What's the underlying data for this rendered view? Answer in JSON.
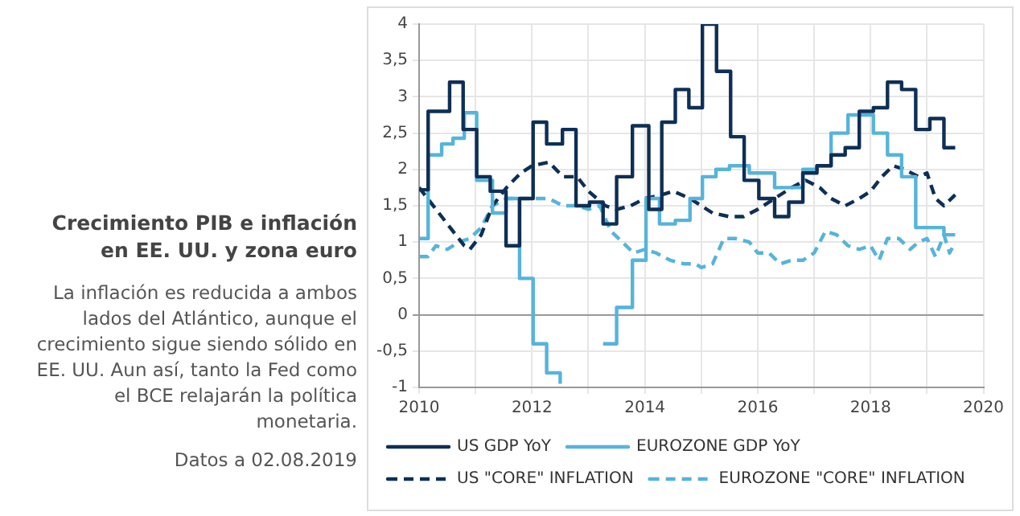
{
  "chart_data": {
    "type": "line",
    "title": "Crecimiento PIB e inflación en EE. UU. y zona euro",
    "subtitle": "La inflación es reducida a ambos lados del Atlántico, aunque el crecimiento sigue siendo sólido en EE. UU. Aun así, tanto la Fed como el BCE relajarán la política monetaria.",
    "annotations": [
      "Datos a 02.08.2019"
    ],
    "xlim": [
      2010,
      2020
    ],
    "xticks": [
      2010,
      {
        "value": 2011,
        "label": null
      },
      2012,
      {
        "value": 2013,
        "label": null
      },
      2014,
      {
        "value": 2015,
        "label": null
      },
      2016,
      {
        "value": 2017,
        "label": null
      },
      2018,
      {
        "value": 2019,
        "label": null
      },
      2020
    ],
    "ylim": [
      -1,
      4
    ],
    "yticks": [
      -1,
      {
        "value": -0.5,
        "label": "-0,5"
      },
      0,
      {
        "value": 0.5,
        "label": "0,5"
      },
      1,
      {
        "value": 1.5,
        "label": "1,5"
      },
      2,
      {
        "value": 2.5,
        "label": "2,5"
      },
      3,
      {
        "value": 3.5,
        "label": "3,5"
      },
      4
    ],
    "grid": true,
    "legend": "bottom",
    "marker": "none",
    "series": [
      {
        "name": "US GDP YoY",
        "type": "step",
        "line_style": "solid",
        "color": "#0e2f55",
        "x": [
          2010.0,
          2010.16,
          2010.54,
          2010.78,
          2011.02,
          2011.26,
          2011.54,
          2011.78,
          2012.02,
          2012.26,
          2012.54,
          2012.78,
          2013.02,
          2013.26,
          2013.5,
          2013.78,
          2014.07,
          2014.3,
          2014.54,
          2014.78,
          2015.02,
          2015.27,
          2015.52,
          2015.76,
          2016.02,
          2016.3,
          2016.55,
          2016.8,
          2017.05,
          2017.3,
          2017.55,
          2017.8,
          2018.05,
          2018.3,
          2018.55,
          2018.8,
          2019.05,
          2019.3,
          2019.5
        ],
        "values": [
          1.72,
          2.8,
          3.2,
          2.55,
          1.9,
          1.7,
          0.95,
          1.6,
          2.65,
          2.35,
          2.55,
          1.5,
          1.55,
          1.25,
          1.9,
          2.6,
          1.45,
          2.65,
          3.1,
          2.85,
          4.0,
          3.35,
          2.45,
          1.85,
          1.6,
          1.35,
          1.55,
          1.95,
          2.05,
          2.2,
          2.3,
          2.8,
          2.85,
          3.2,
          3.1,
          2.55,
          2.7,
          2.3,
          2.3
        ]
      },
      {
        "name": "EUROZONE GDP YoY",
        "type": "step",
        "line_style": "solid",
        "color": "#56b4da",
        "x": [
          2010.0,
          2010.16,
          2010.4,
          2010.6,
          2010.8,
          2011.02,
          2011.3,
          2011.54,
          2011.78,
          2012.02,
          2012.26,
          2012.5,
          2012.78,
          2013.02,
          2013.26,
          2013.5,
          2013.78,
          2014.02,
          2014.26,
          2014.54,
          2014.8,
          2015.02,
          2015.26,
          2015.5,
          2015.85,
          2016.3,
          2016.8,
          2017.05,
          2017.3,
          2017.6,
          2018.05,
          2018.3,
          2018.55,
          2018.8,
          2019.05,
          2019.3,
          2019.5
        ],
        "values": [
          1.05,
          2.2,
          2.35,
          2.43,
          2.78,
          1.85,
          1.4,
          1.6,
          0.5,
          -0.4,
          -0.8,
          -0.95,
          null,
          null,
          -0.4,
          0.1,
          0.75,
          1.6,
          1.25,
          1.3,
          1.6,
          1.9,
          2.0,
          2.05,
          1.95,
          1.75,
          2.0,
          2.05,
          2.5,
          2.75,
          2.5,
          2.2,
          1.9,
          1.2,
          1.2,
          1.1,
          1.1
        ]
      },
      {
        "name": "US \"CORE\" INFLATION",
        "type": "line",
        "line_style": "dashed",
        "color": "#0e2f55",
        "x": [
          2010.0,
          2010.3,
          2010.6,
          2010.8,
          2010.9,
          2011.1,
          2011.3,
          2011.55,
          2011.8,
          2012.0,
          2012.3,
          2012.55,
          2012.8,
          2013.0,
          2013.3,
          2013.5,
          2013.75,
          2014.0,
          2014.3,
          2014.5,
          2014.8,
          2015.0,
          2015.2,
          2015.5,
          2015.75,
          2016.0,
          2016.3,
          2016.6,
          2016.85,
          2017.1,
          2017.3,
          2017.55,
          2017.8,
          2018.0,
          2018.2,
          2018.4,
          2018.6,
          2018.85,
          2019.0,
          2019.15,
          2019.3,
          2019.5
        ],
        "values": [
          1.75,
          1.45,
          1.15,
          0.95,
          0.9,
          1.1,
          1.5,
          1.75,
          1.95,
          2.05,
          2.1,
          1.9,
          1.9,
          1.7,
          1.5,
          1.45,
          1.5,
          1.6,
          1.65,
          1.7,
          1.6,
          1.5,
          1.4,
          1.35,
          1.35,
          1.45,
          1.6,
          1.75,
          1.85,
          1.75,
          1.6,
          1.5,
          1.6,
          1.7,
          1.9,
          2.05,
          2.0,
          1.9,
          1.95,
          1.6,
          1.5,
          1.65
        ]
      },
      {
        "name": "EUROZONE \"CORE\" INFLATION",
        "type": "line",
        "line_style": "dashed",
        "color": "#56b4da",
        "x": [
          2010.0,
          2010.15,
          2010.3,
          2010.5,
          2010.7,
          2010.9,
          2011.1,
          2011.3,
          2011.55,
          2011.8,
          2012.0,
          2012.3,
          2012.55,
          2012.8,
          2013.0,
          2013.2,
          2013.4,
          2013.6,
          2013.8,
          2014.0,
          2014.2,
          2014.45,
          2014.7,
          2014.9,
          2015.0,
          2015.2,
          2015.4,
          2015.6,
          2015.85,
          2016.0,
          2016.2,
          2016.4,
          2016.6,
          2016.8,
          2017.0,
          2017.2,
          2017.4,
          2017.6,
          2017.8,
          2018.0,
          2018.15,
          2018.3,
          2018.5,
          2018.7,
          2018.85,
          2019.0,
          2019.15,
          2019.3,
          2019.4,
          2019.5
        ],
        "values": [
          0.8,
          0.8,
          0.95,
          0.9,
          1.0,
          1.05,
          1.2,
          1.5,
          1.6,
          1.6,
          1.6,
          1.6,
          1.5,
          1.5,
          1.45,
          1.5,
          1.15,
          1.0,
          0.85,
          0.9,
          0.85,
          0.75,
          0.7,
          0.7,
          0.65,
          0.7,
          1.05,
          1.05,
          1.0,
          0.85,
          0.85,
          0.7,
          0.75,
          0.75,
          0.85,
          1.15,
          1.1,
          0.95,
          0.9,
          0.95,
          0.75,
          1.05,
          1.05,
          0.9,
          1.0,
          1.05,
          0.8,
          1.1,
          0.85,
          1.0
        ]
      }
    ]
  }
}
